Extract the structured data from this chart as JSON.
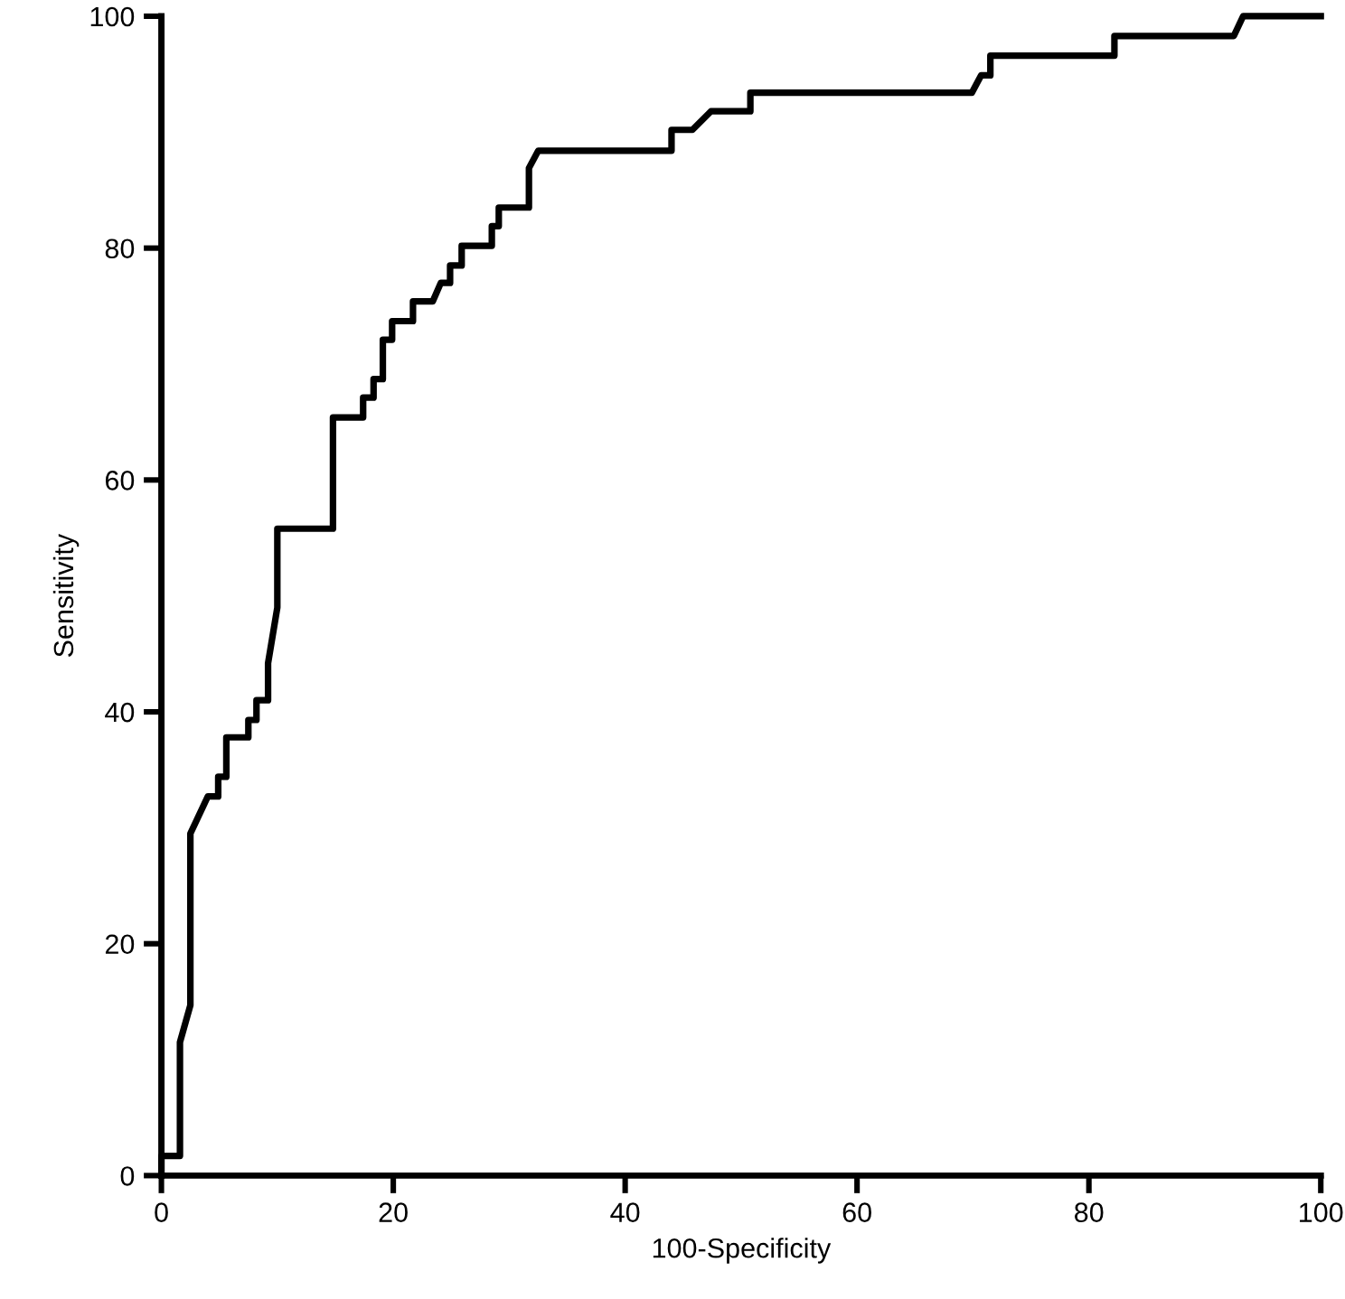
{
  "chart_data": {
    "type": "line",
    "xlabel": "100-Specificity",
    "ylabel": "Sensitivity",
    "x": [
      0,
      0,
      1.6,
      1.6,
      2.5,
      2.5,
      4.0,
      4.9,
      4.9,
      5.6,
      5.6,
      7.5,
      7.5,
      8.2,
      8.2,
      9.2,
      9.2,
      10.0,
      10.0,
      14.8,
      14.8,
      17.4,
      17.4,
      18.3,
      18.3,
      19.1,
      19.1,
      19.9,
      19.9,
      21.7,
      21.7,
      23.4,
      24.1,
      24.9,
      24.9,
      25.9,
      25.9,
      28.5,
      28.5,
      29.1,
      29.1,
      31.7,
      31.7,
      32.5,
      44.0,
      44.0,
      45.8,
      47.4,
      50.8,
      50.8,
      69.9,
      70.7,
      71.5,
      71.5,
      82.2,
      82.2,
      92.5,
      93.3,
      100
    ],
    "series": [
      {
        "color": "#000000",
        "values": [
          0,
          1.7,
          1.7,
          11.5,
          14.7,
          29.5,
          32.7,
          32.7,
          34.4,
          34.4,
          37.8,
          37.8,
          39.3,
          39.3,
          41.0,
          41.0,
          44.2,
          49.0,
          55.8,
          55.8,
          65.4,
          65.4,
          67.1,
          67.1,
          68.7,
          68.7,
          72.1,
          72.1,
          73.7,
          73.7,
          75.4,
          75.4,
          77.0,
          77.0,
          78.5,
          78.5,
          80.2,
          80.2,
          81.9,
          81.9,
          83.5,
          83.5,
          86.9,
          88.4,
          88.4,
          90.2,
          90.2,
          91.8,
          91.8,
          93.4,
          93.4,
          94.9,
          94.9,
          96.6,
          96.6,
          98.3,
          98.3,
          100,
          100
        ]
      }
    ],
    "xlim": [
      0,
      100
    ],
    "ylim": [
      0,
      100
    ],
    "xticks": [
      0,
      20,
      40,
      60,
      80,
      100
    ],
    "yticks": [
      0,
      20,
      40,
      60,
      80,
      100
    ],
    "grid": false,
    "legend": false,
    "marker": "none",
    "line_style": "solid"
  }
}
